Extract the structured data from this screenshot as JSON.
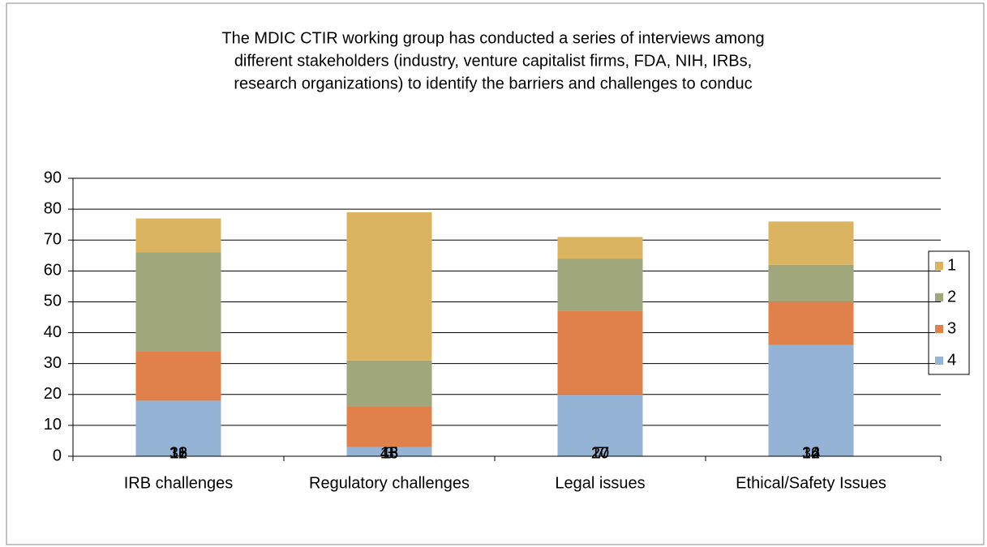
{
  "chart_data": {
    "type": "stacked_bar",
    "title": [
      "The MDIC CTIR working group has conducted a series of interviews among",
      "different stakeholders (industry, venture capitalist firms, FDA, NIH, IRBs,",
      "research organizations) to identify the barriers and challenges to conduc"
    ],
    "categories": [
      "IRB challenges",
      "Regulatory challenges",
      "Legal issues",
      "Ethical/Safety Issues"
    ],
    "series": [
      {
        "name": "4",
        "color": "#94b3d5",
        "values": [
          18,
          3,
          20,
          36
        ]
      },
      {
        "name": "3",
        "color": "#e0804a",
        "values": [
          16,
          13,
          27,
          14
        ]
      },
      {
        "name": "2",
        "color": "#a0a77c",
        "values": [
          32,
          15,
          17,
          12
        ]
      },
      {
        "name": "1",
        "color": "#dbb462",
        "values": [
          11,
          48,
          7,
          14
        ]
      }
    ],
    "ylim": [
      0,
      90
    ],
    "yticks": [
      0,
      10,
      20,
      30,
      40,
      50,
      60,
      70,
      80,
      90
    ],
    "grid": true,
    "legend": "right"
  }
}
